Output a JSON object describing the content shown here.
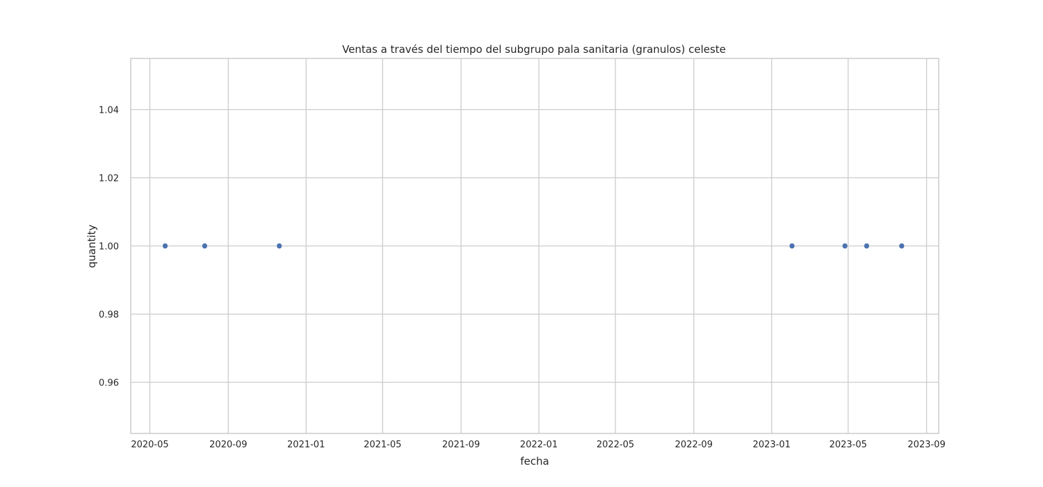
{
  "chart_data": {
    "type": "scatter",
    "title": "Ventas a través del tiempo del subgrupo pala sanitaria (granulos) celeste",
    "xlabel": "fecha",
    "ylabel": "quantity",
    "x_ticks": [
      "2020-05",
      "2020-09",
      "2021-01",
      "2021-05",
      "2021-09",
      "2022-01",
      "2022-05",
      "2022-09",
      "2023-01",
      "2023-05",
      "2023-09"
    ],
    "y_ticks": [
      "0.96",
      "0.98",
      "1.00",
      "1.02",
      "1.04"
    ],
    "xlim": [
      "2020-04-01",
      "2023-09-20"
    ],
    "ylim": [
      0.945,
      1.055
    ],
    "grid": true,
    "marker_color": "#4c72b0",
    "points": [
      {
        "x": "2020-05-25",
        "y": 1.0
      },
      {
        "x": "2020-07-26",
        "y": 1.0
      },
      {
        "x": "2020-11-20",
        "y": 1.0
      },
      {
        "x": "2023-02-02",
        "y": 1.0
      },
      {
        "x": "2023-04-26",
        "y": 1.0
      },
      {
        "x": "2023-05-30",
        "y": 1.0
      },
      {
        "x": "2023-07-24",
        "y": 1.0
      }
    ]
  }
}
